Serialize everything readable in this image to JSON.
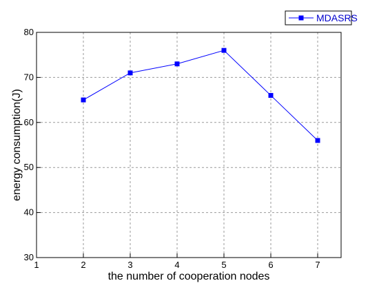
{
  "chart_data": {
    "type": "line",
    "xlabel": "the number of cooperation nodes",
    "ylabel": "energy consumption(J)",
    "xlim": [
      1,
      7.5
    ],
    "ylim": [
      30,
      80
    ],
    "x_ticks": [
      "1",
      "2",
      "3",
      "4",
      "5",
      "6",
      "7"
    ],
    "y_ticks": [
      "30",
      "40",
      "50",
      "60",
      "70",
      "80"
    ],
    "grid": true,
    "legend_position": "top-right",
    "series": [
      {
        "name": "MDASRS",
        "color": "#0000ff",
        "marker": "square",
        "x": [
          2,
          3,
          4,
          5,
          6,
          7
        ],
        "y": [
          65,
          71,
          73,
          76,
          66,
          56
        ]
      }
    ]
  }
}
